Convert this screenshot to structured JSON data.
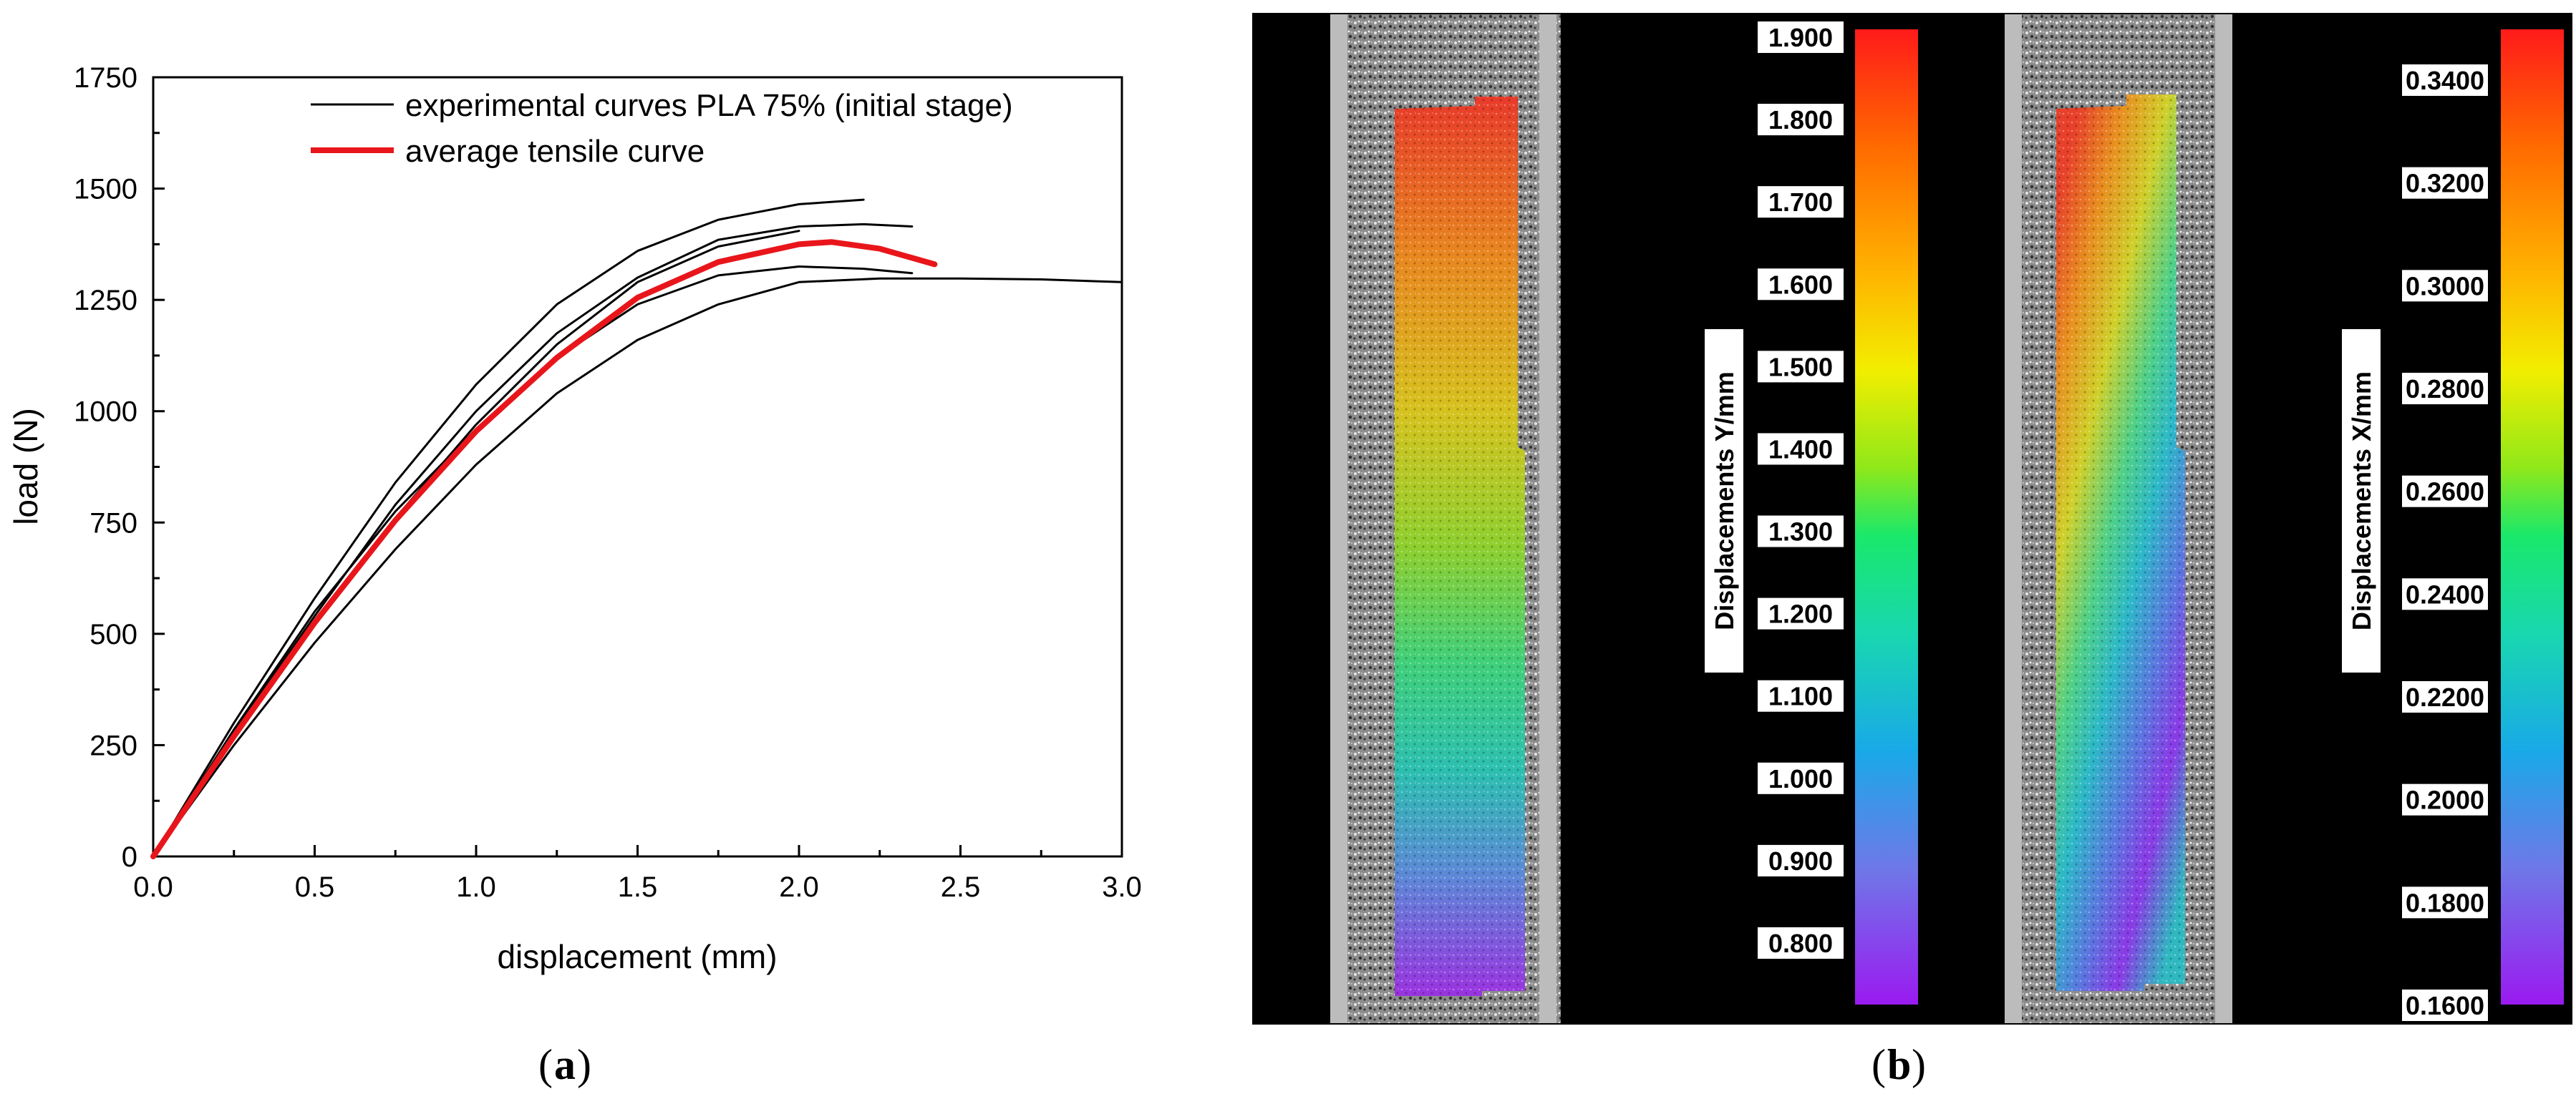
{
  "panel_a_label": "a",
  "panel_b_label": "b",
  "chart_data": {
    "type": "line",
    "title": "",
    "xlabel": "displacement (mm)",
    "ylabel": "load (N)",
    "xlim": [
      0,
      3.0
    ],
    "ylim": [
      0,
      1750
    ],
    "xticks": [
      0.0,
      0.5,
      1.0,
      1.5,
      2.0,
      2.5,
      3.0
    ],
    "xtick_labels": [
      "0.0",
      "0.5",
      "1.0",
      "1.5",
      "2.0",
      "2.5",
      "3.0"
    ],
    "yticks": [
      0,
      250,
      500,
      750,
      1000,
      1250,
      1500,
      1750
    ],
    "ytick_labels": [
      "0",
      "250",
      "500",
      "750",
      "1000",
      "1250",
      "1500",
      "1750"
    ],
    "grid": false,
    "legend_position": "top-right",
    "legend": [
      {
        "label": "experimental curves PLA 75% (initial stage)",
        "color": "#000000"
      },
      {
        "label": "average tensile curve",
        "color": "#e8161b"
      }
    ],
    "series": [
      {
        "name": "experimental curve 1",
        "color": "#000000",
        "x": [
          0,
          0.25,
          0.5,
          0.75,
          1.0,
          1.25,
          1.5,
          1.75,
          2.0,
          2.2
        ],
        "y": [
          0,
          300,
          580,
          840,
          1060,
          1240,
          1360,
          1430,
          1465,
          1475
        ]
      },
      {
        "name": "experimental curve 2",
        "color": "#000000",
        "x": [
          0,
          0.25,
          0.5,
          0.75,
          1.0,
          1.25,
          1.5,
          1.75,
          2.0,
          2.2,
          2.35
        ],
        "y": [
          0,
          280,
          540,
          790,
          1000,
          1175,
          1300,
          1385,
          1415,
          1420,
          1415
        ]
      },
      {
        "name": "experimental curve 3",
        "color": "#000000",
        "x": [
          0,
          0.25,
          0.5,
          0.75,
          1.0,
          1.25,
          1.5,
          1.75,
          2.0
        ],
        "y": [
          0,
          270,
          520,
          760,
          970,
          1150,
          1290,
          1370,
          1405
        ]
      },
      {
        "name": "experimental curve 4",
        "color": "#000000",
        "x": [
          0,
          0.25,
          0.5,
          0.75,
          1.0,
          1.25,
          1.5,
          1.75,
          2.0,
          2.2,
          2.35
        ],
        "y": [
          0,
          285,
          550,
          775,
          960,
          1120,
          1240,
          1305,
          1325,
          1320,
          1310
        ]
      },
      {
        "name": "experimental curve 5",
        "color": "#000000",
        "x": [
          0,
          0.25,
          0.5,
          0.75,
          1.0,
          1.25,
          1.5,
          1.75,
          2.0,
          2.25,
          2.5,
          2.75,
          3.0
        ],
        "y": [
          0,
          250,
          480,
          690,
          880,
          1040,
          1160,
          1240,
          1290,
          1298,
          1298,
          1296,
          1290
        ]
      },
      {
        "name": "average tensile curve",
        "color": "#e8161b",
        "x": [
          0,
          0.25,
          0.5,
          0.75,
          1.0,
          1.25,
          1.5,
          1.75,
          2.0,
          2.1,
          2.25,
          2.42
        ],
        "y": [
          0,
          270,
          525,
          755,
          955,
          1120,
          1255,
          1335,
          1375,
          1380,
          1365,
          1330
        ]
      }
    ]
  },
  "dic_maps": [
    {
      "title": "Displacements Y/mm",
      "scale_labels": [
        "1.900",
        "1.800",
        "1.700",
        "1.600",
        "1.500",
        "1.400",
        "1.300",
        "1.200",
        "1.100",
        "1.000",
        "0.900",
        "0.800"
      ]
    },
    {
      "title": "Displacements X/mm",
      "scale_labels": [
        "0.3400",
        "0.3200",
        "0.3000",
        "0.2800",
        "0.2600",
        "0.2400",
        "0.2200",
        "0.2000",
        "0.1800",
        "0.1600"
      ]
    }
  ]
}
